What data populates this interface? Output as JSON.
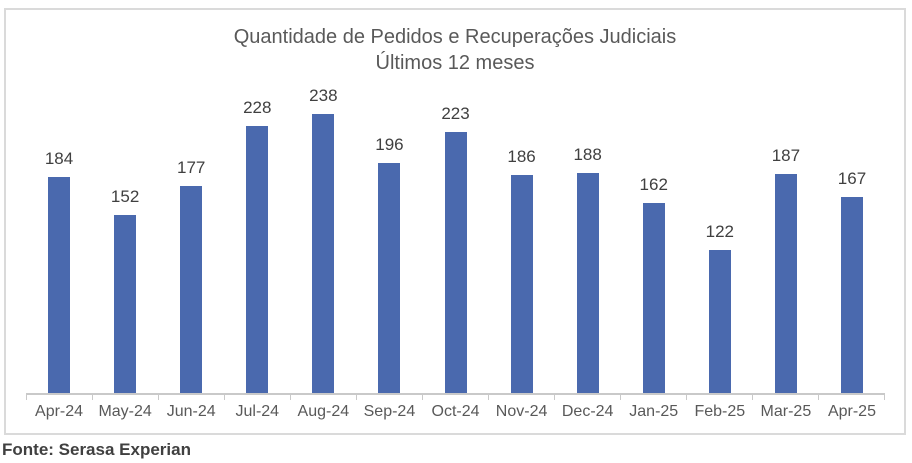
{
  "chart": {
    "title_line1": "Quantidade de Pedidos e Recuperações Judiciais",
    "title_line2": "Últimos 12 meses"
  },
  "footer": {
    "source": "Fonte: Serasa Experian"
  },
  "colors": {
    "bar": "#4a69ae",
    "title_text": "#595959",
    "value_label_text": "#404040",
    "category_label_text": "#595959",
    "axis_line": "#c9c9c9",
    "panel_border": "#dadada",
    "footer_text": "#404040"
  },
  "chart_data": {
    "type": "bar",
    "categories": [
      "Apr-24",
      "May-24",
      "Jun-24",
      "Jul-24",
      "Aug-24",
      "Sep-24",
      "Oct-24",
      "Nov-24",
      "Dec-24",
      "Jan-25",
      "Feb-25",
      "Mar-25",
      "Apr-25"
    ],
    "values": [
      184,
      152,
      177,
      228,
      238,
      196,
      223,
      186,
      188,
      162,
      122,
      187,
      167
    ],
    "title": "Quantidade de Pedidos e Recuperações Judiciais",
    "subtitle": "Últimos 12 meses",
    "xlabel": "",
    "ylabel": "",
    "ylim": [
      0,
      250
    ],
    "grid": false,
    "legend": false,
    "data_labels": true,
    "source_note": "Fonte: Serasa Experian"
  }
}
